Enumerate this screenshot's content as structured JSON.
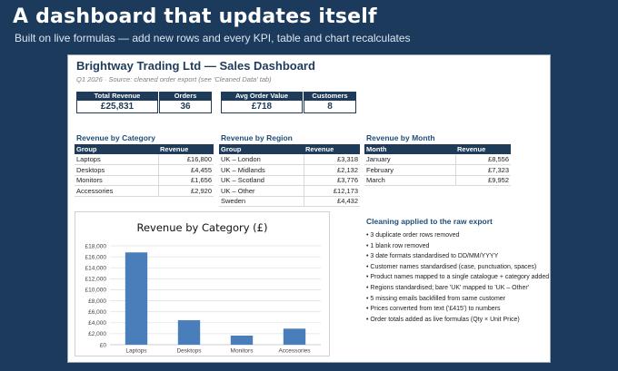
{
  "hero": {
    "title": "A dashboard that updates itself",
    "subtitle": "Built on live formulas — add new rows and every KPI, table and chart recalculates"
  },
  "sheet": {
    "title": "Brightway Trading Ltd — Sales Dashboard",
    "note": "Q1 2026 · Source: cleaned order export (see 'Cleaned Data' tab)"
  },
  "kpis": [
    {
      "label": "Total Revenue",
      "value": "£25,831"
    },
    {
      "label": "Orders",
      "value": "36"
    },
    {
      "label": "Avg Order Value",
      "value": "£718"
    },
    {
      "label": "Customers",
      "value": "8"
    }
  ],
  "tables": {
    "category": {
      "title": "Revenue by Category",
      "headers": [
        "Group",
        "Revenue"
      ],
      "rows": [
        [
          "Laptops",
          "£16,800"
        ],
        [
          "Desktops",
          "£4,455"
        ],
        [
          "Monitors",
          "£1,656"
        ],
        [
          "Accessories",
          "£2,920"
        ]
      ]
    },
    "region": {
      "title": "Revenue by Region",
      "headers": [
        "Group",
        "Revenue"
      ],
      "rows": [
        [
          "UK – London",
          "£3,318"
        ],
        [
          "UK – Midlands",
          "£2,132"
        ],
        [
          "UK – Scotland",
          "£3,776"
        ],
        [
          "UK – Other",
          "£12,173"
        ],
        [
          "Sweden",
          "£4,432"
        ]
      ]
    },
    "month": {
      "title": "Revenue by Month",
      "headers": [
        "Month",
        "Revenue"
      ],
      "rows": [
        [
          "January",
          "£8,556"
        ],
        [
          "February",
          "£7,323"
        ],
        [
          "March",
          "£9,952"
        ]
      ]
    }
  },
  "cleaning": {
    "title": "Cleaning applied to the raw export",
    "items": [
      "• 3 duplicate order rows removed",
      "• 1 blank row removed",
      "• 3 date formats standardised to DD/MM/YYYY",
      "• Customer names standardised (case, punctuation, spaces)",
      "• Product names mapped to a single catalogue + category added",
      "• Regions standardised; bare 'UK' mapped to 'UK – Other'",
      "• 5 missing emails backfilled from same customer",
      "• Prices converted from text ('£415') to numbers",
      "• Order totals added as live formulas (Qty × Unit Price)"
    ]
  },
  "chart_data": {
    "type": "bar",
    "title": "Revenue by Category (£)",
    "categories": [
      "Laptops",
      "Desktops",
      "Monitors",
      "Accessories"
    ],
    "values": [
      16800,
      4455,
      1656,
      2920
    ],
    "ylim": [
      0,
      18000
    ],
    "yticks": [
      0,
      2000,
      4000,
      6000,
      8000,
      10000,
      12000,
      14000,
      16000,
      18000
    ],
    "ytick_labels": [
      "£0",
      "£2,000",
      "£4,000",
      "£6,000",
      "£8,000",
      "£10,000",
      "£12,000",
      "£14,000",
      "£16,000",
      "£18,000"
    ],
    "grid": true,
    "bar_color": "#4a7ebb"
  }
}
